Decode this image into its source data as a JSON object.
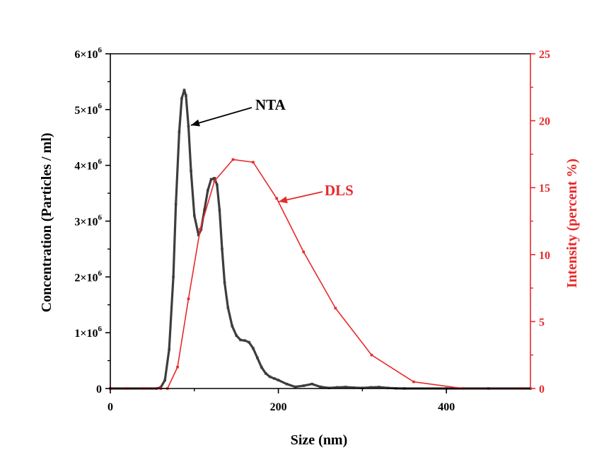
{
  "chart_data": {
    "type": "line",
    "xlabel": "Size (nm)",
    "ylabel_left": "Concentration (Particles / ml)",
    "ylabel_right": "Intensity (percent %)",
    "xlim": [
      0,
      500
    ],
    "ylim_left": [
      0,
      6000000
    ],
    "ylim_right": [
      0,
      25
    ],
    "x_ticks": [
      0,
      200,
      400
    ],
    "x_tick_labels": [
      "0",
      "200",
      "400"
    ],
    "y_left_ticks": [
      {
        "mantissa": "0",
        "exp": ""
      },
      {
        "mantissa": "1×10",
        "exp": "6"
      },
      {
        "mantissa": "2×10",
        "exp": "6"
      },
      {
        "mantissa": "3×10",
        "exp": "6"
      },
      {
        "mantissa": "4×10",
        "exp": "6"
      },
      {
        "mantissa": "5×10",
        "exp": "6"
      },
      {
        "mantissa": "6×10",
        "exp": "6"
      }
    ],
    "y_right_ticks": [
      0,
      5,
      10,
      15,
      20,
      25
    ],
    "y_right_tick_labels": [
      "0",
      "5",
      "10",
      "15",
      "20",
      "25"
    ],
    "series": [
      {
        "name": "NTA",
        "axis": "left",
        "color": "#3d3d3d",
        "x": [
          0,
          55,
          60,
          65,
          70,
          75,
          78,
          82,
          85,
          88,
          90,
          93,
          96,
          100,
          105,
          108,
          112,
          116,
          120,
          124,
          127,
          130,
          133,
          136,
          140,
          145,
          150,
          155,
          160,
          165,
          170,
          175,
          180,
          185,
          190,
          195,
          200,
          210,
          220,
          230,
          240,
          250,
          260,
          270,
          280,
          290,
          300,
          310,
          320,
          330,
          340,
          350,
          400,
          450,
          500
        ],
        "values": [
          0,
          0,
          20000,
          150000,
          700000,
          2000000,
          3300000,
          4600000,
          5200000,
          5350000,
          5250000,
          4700000,
          3900000,
          3100000,
          2750000,
          2850000,
          3200000,
          3550000,
          3750000,
          3770000,
          3650000,
          3200000,
          2500000,
          1900000,
          1450000,
          1120000,
          950000,
          870000,
          860000,
          830000,
          720000,
          550000,
          380000,
          270000,
          210000,
          180000,
          150000,
          80000,
          30000,
          50000,
          80000,
          30000,
          10000,
          20000,
          25000,
          15000,
          10000,
          20000,
          25000,
          10000,
          3000,
          0,
          0,
          0,
          0
        ]
      },
      {
        "name": "DLS",
        "axis": "right",
        "color": "#e8292b",
        "x": [
          0,
          20,
          40,
          55,
          60,
          68,
          80,
          93,
          107,
          124,
          146,
          170,
          198,
          230,
          268,
          311,
          361,
          420,
          490
        ],
        "values": [
          0,
          0,
          0,
          0,
          0,
          0,
          1.6,
          6.7,
          11.9,
          15.5,
          17.1,
          16.9,
          14.2,
          10.2,
          6.0,
          2.5,
          0.5,
          0,
          0
        ]
      }
    ],
    "annotations": [
      {
        "text": "NTA",
        "color": "#000000"
      },
      {
        "text": "DLS",
        "color": "#e8292b"
      }
    ]
  }
}
